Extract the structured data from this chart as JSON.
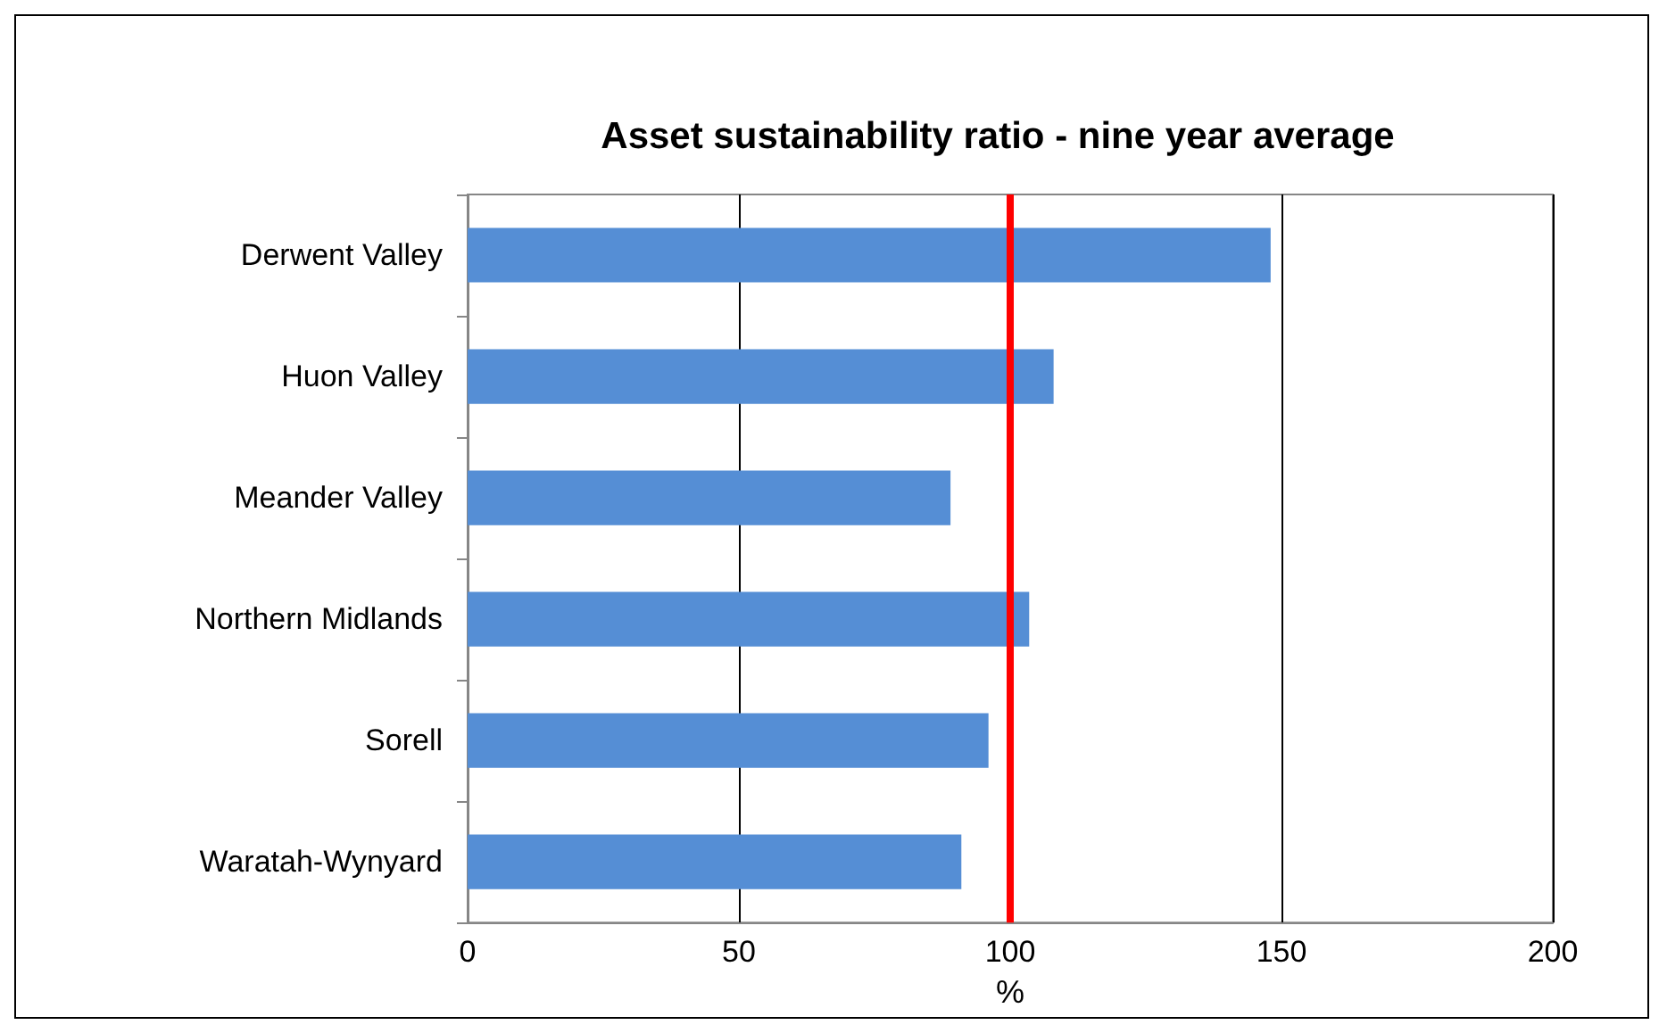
{
  "chart_data": {
    "type": "bar",
    "orientation": "horizontal",
    "title": "Asset sustainability ratio - nine year average",
    "xlabel": "%",
    "categories": [
      "Derwent Valley",
      "Huon Valley",
      "Meander Valley",
      "Northern Midlands",
      "Sorell",
      "Waratah-Wynyard"
    ],
    "values": [
      148,
      108,
      89,
      103.5,
      96,
      91
    ],
    "color": "#558ed5",
    "xlim": [
      0,
      200
    ],
    "xticks": [
      0,
      50,
      100,
      150,
      200
    ],
    "grid": "x",
    "ref_lines": [
      {
        "axis": "x",
        "value": 100,
        "color": "#ff0000"
      }
    ]
  }
}
